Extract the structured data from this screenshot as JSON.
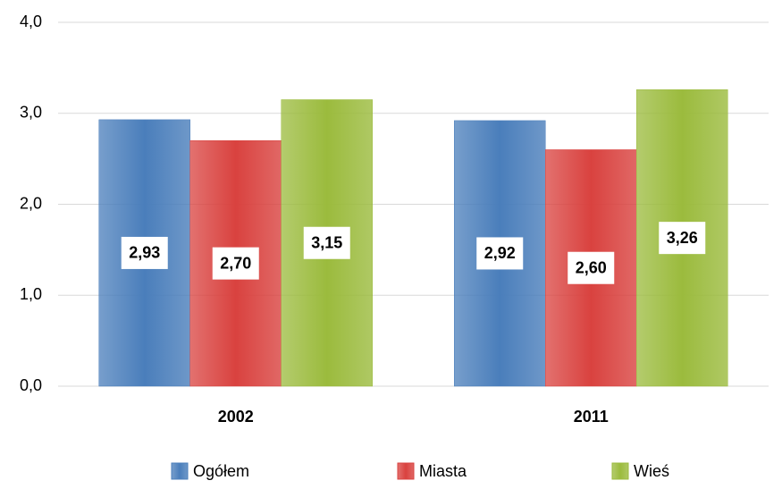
{
  "chart_data": {
    "type": "bar",
    "categories": [
      "2002",
      "2011"
    ],
    "series": [
      {
        "name": "Ogółem",
        "color": "#4a7ebb",
        "values": [
          2.93,
          2.92
        ],
        "value_labels": [
          "2,93",
          "2,92"
        ]
      },
      {
        "name": "Miasta",
        "color": "#d9423f",
        "values": [
          2.7,
          2.6
        ],
        "value_labels": [
          "2,70",
          "2,60"
        ]
      },
      {
        "name": "Wieś",
        "color": "#9bbb3d",
        "values": [
          3.15,
          3.26
        ],
        "value_labels": [
          "3,15",
          "3,26"
        ]
      }
    ],
    "ylim": [
      0,
      4
    ],
    "yticks": [
      {
        "value": 0,
        "label": "0,0"
      },
      {
        "value": 1,
        "label": "1,0"
      },
      {
        "value": 2,
        "label": "2,0"
      },
      {
        "value": 3,
        "label": "3,0"
      },
      {
        "value": 4,
        "label": "4,0"
      }
    ],
    "grid": true,
    "legend": "bottom"
  }
}
